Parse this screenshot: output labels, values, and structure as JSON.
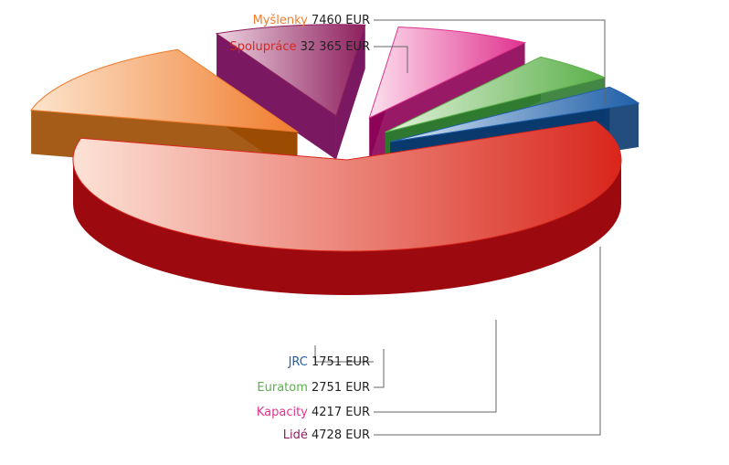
{
  "chart_data": {
    "type": "pie",
    "style": "exploded-3d",
    "unit": "EUR",
    "grid": false,
    "legend": "callout-labels",
    "slices": [
      {
        "name": "Spolupráce",
        "value": 32365,
        "value_text": "32 365",
        "color": "#d9261c",
        "light": "#fde2d6",
        "dark": "#9c0a10"
      },
      {
        "name": "Myšlenky",
        "value": 7460,
        "value_text": "7460",
        "color": "#f07d2e",
        "light": "#fde4cc",
        "dark": "#9b4a00"
      },
      {
        "name": "Lidé",
        "value": 4728,
        "value_text": "4728",
        "color": "#8e1f5e",
        "light": "#ecd3e0",
        "dark": "#6b0050"
      },
      {
        "name": "Kapacity",
        "value": 4217,
        "value_text": "4217",
        "color": "#e0338f",
        "light": "#fde0ee",
        "dark": "#8d0055"
      },
      {
        "name": "Euratom",
        "value": 2751,
        "value_text": "2751",
        "color": "#5bb04a",
        "light": "#e3f2dc",
        "dark": "#2d7a2f"
      },
      {
        "name": "JRC",
        "value": 1751,
        "value_text": "1751",
        "color": "#1f5fa8",
        "light": "#d8e6f5",
        "dark": "#0a3a6e"
      }
    ]
  }
}
